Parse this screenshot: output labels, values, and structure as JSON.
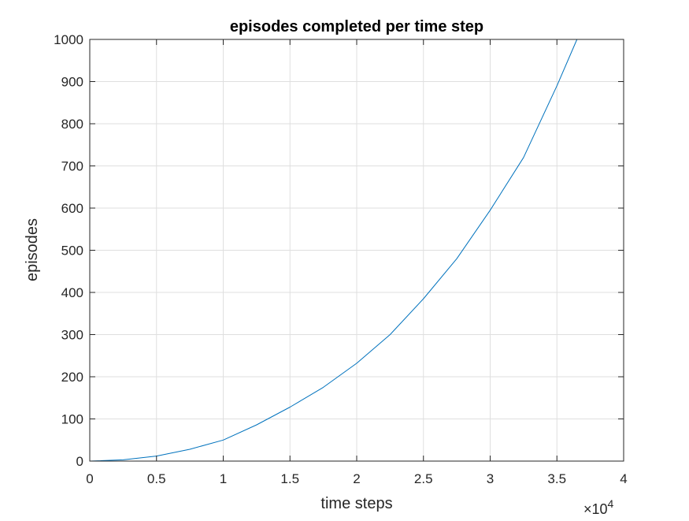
{
  "chart_data": {
    "type": "line",
    "title": "episodes completed per time step",
    "xlabel": "time steps",
    "ylabel": "episodes",
    "xlim": [
      0,
      40000
    ],
    "ylim": [
      0,
      1000
    ],
    "x_tick_values": [
      0,
      5000,
      10000,
      15000,
      20000,
      25000,
      30000,
      35000,
      40000
    ],
    "x_tick_labels": [
      "0",
      "0.5",
      "1",
      "1.5",
      "2",
      "2.5",
      "3",
      "3.5",
      "4"
    ],
    "x_exponent_label": "×10",
    "x_exponent_power": "4",
    "y_tick_values": [
      0,
      100,
      200,
      300,
      400,
      500,
      600,
      700,
      800,
      900,
      1000
    ],
    "y_tick_labels": [
      "0",
      "100",
      "200",
      "300",
      "400",
      "500",
      "600",
      "700",
      "800",
      "900",
      "1000"
    ],
    "grid": true,
    "legend": "none",
    "line_color": "#0072BD",
    "series": [
      {
        "x": [
          0,
          2500,
          5000,
          7500,
          10000,
          12500,
          15000,
          17500,
          20000,
          22500,
          25000,
          27500,
          30000,
          32500,
          35000,
          36500
        ],
        "y": [
          0,
          3,
          12,
          28,
          50,
          86,
          128,
          175,
          232,
          300,
          385,
          480,
          595,
          720,
          890,
          1000
        ]
      }
    ]
  }
}
